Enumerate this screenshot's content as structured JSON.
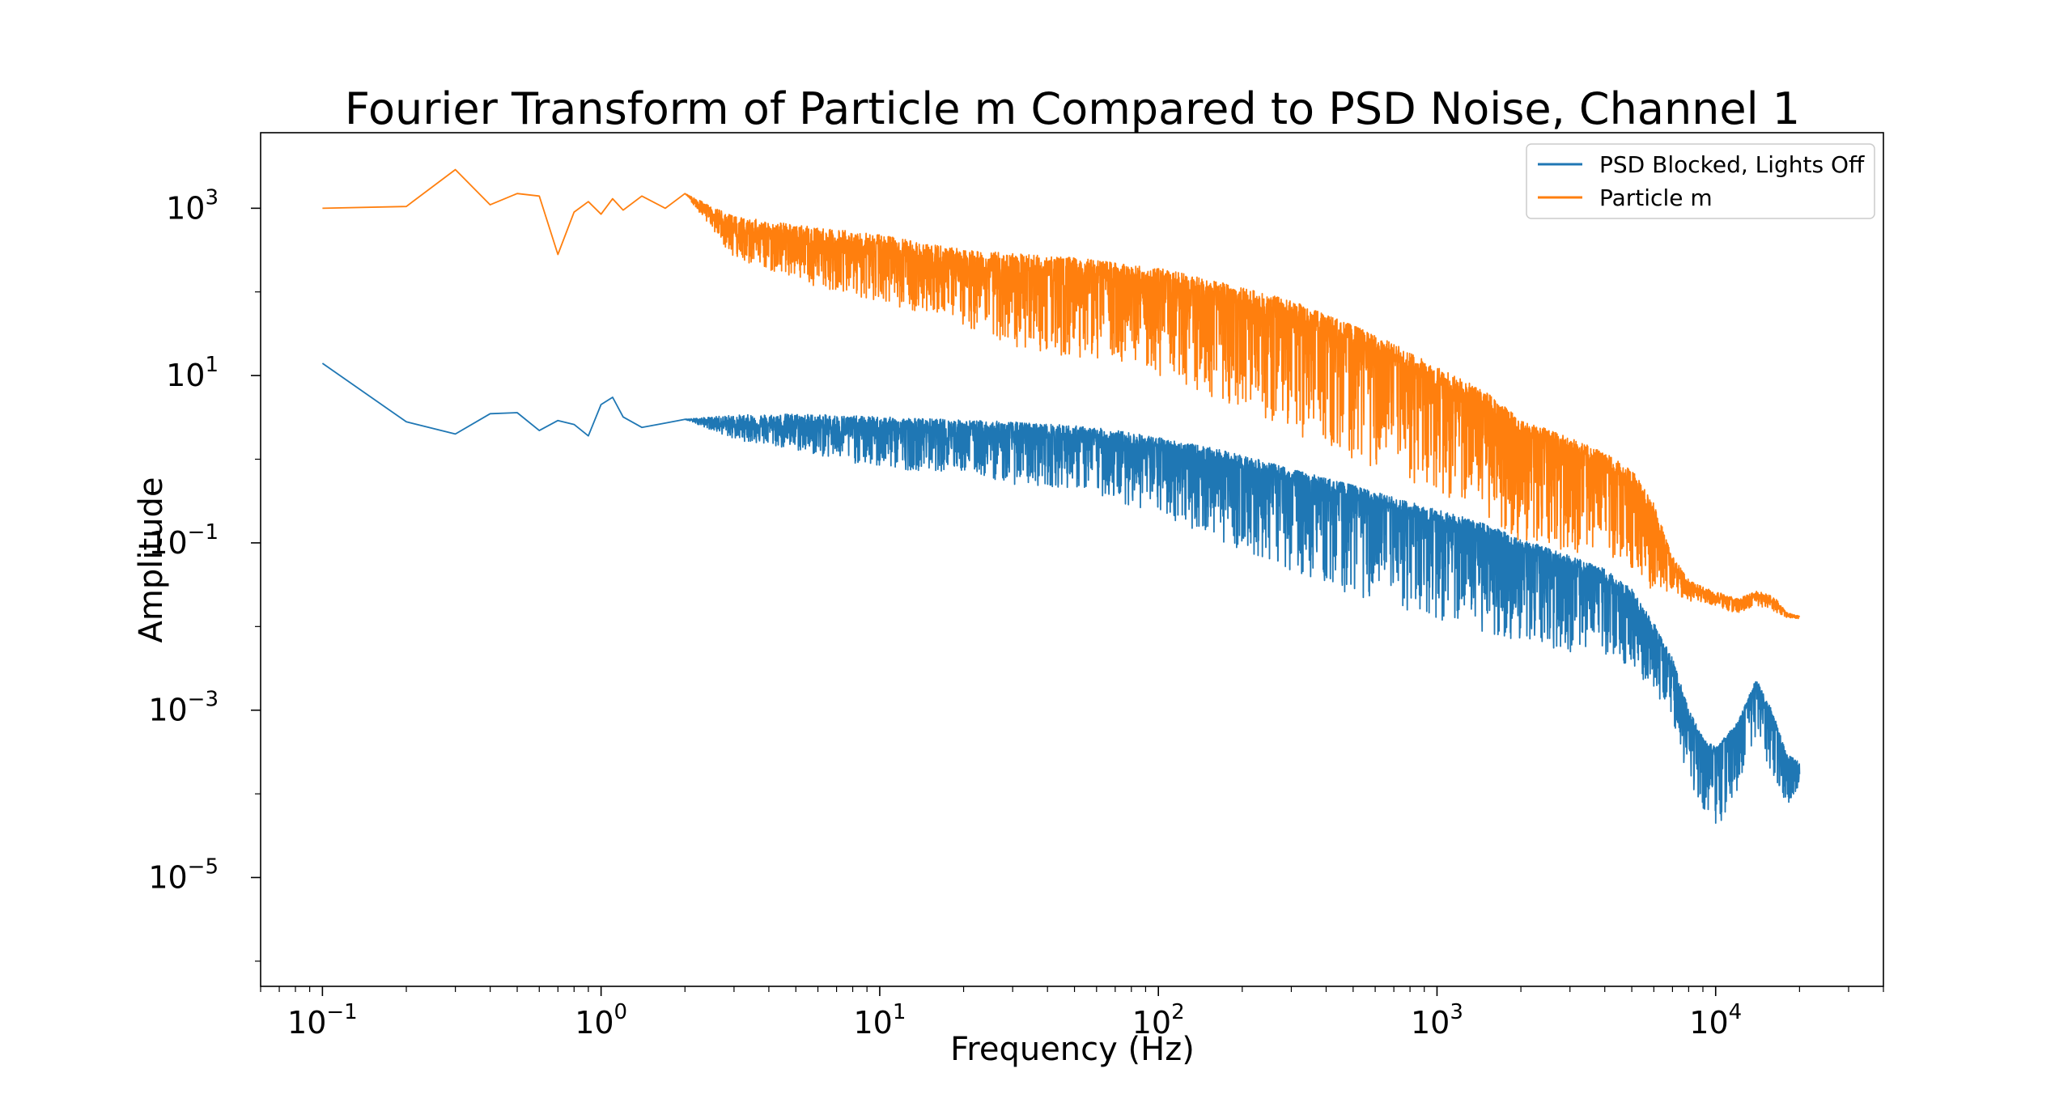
{
  "chart_data": {
    "type": "line",
    "title": "Fourier Transform of Particle m Compared to PSD Noise, Channel 1",
    "xlabel": "Frequency (Hz)",
    "ylabel": "Amplitude",
    "x_scale": "log",
    "y_scale": "log",
    "xlim": [
      0.06,
      40000
    ],
    "ylim": [
      5e-07,
      8000
    ],
    "x_ticks": [
      {
        "value": 0.1,
        "base": "10",
        "exp": "−1"
      },
      {
        "value": 1,
        "base": "10",
        "exp": "0"
      },
      {
        "value": 10,
        "base": "10",
        "exp": "1"
      },
      {
        "value": 100,
        "base": "10",
        "exp": "2"
      },
      {
        "value": 1000,
        "base": "10",
        "exp": "3"
      },
      {
        "value": 10000,
        "base": "10",
        "exp": "4"
      }
    ],
    "y_ticks": [
      {
        "value": 1e-05,
        "base": "10",
        "exp": "−5"
      },
      {
        "value": 0.001,
        "base": "10",
        "exp": "−3"
      },
      {
        "value": 0.1,
        "base": "10",
        "exp": "−1"
      },
      {
        "value": 10,
        "base": "10",
        "exp": "1"
      },
      {
        "value": 1000,
        "base": "10",
        "exp": "3"
      }
    ],
    "grid": false,
    "legend_position": "top-right",
    "series": [
      {
        "name": "PSD Blocked, Lights Off",
        "color": "#1f77b4",
        "x": [
          0.1,
          0.2,
          0.3,
          0.4,
          0.5,
          0.6,
          0.7,
          0.8,
          0.9,
          1.0,
          1.1,
          1.2,
          1.4,
          1.7,
          2,
          3,
          5,
          10,
          20,
          30,
          50,
          70,
          100,
          150,
          200,
          300,
          500,
          700,
          1000,
          1500,
          2000,
          3000,
          4000,
          5000,
          6000,
          7000,
          8000,
          9000,
          10000,
          12000,
          14000,
          16000,
          18000,
          20000
        ],
        "y": [
          14,
          2.8,
          2.0,
          3.5,
          3.6,
          2.2,
          2.9,
          2.6,
          1.9,
          4.5,
          5.5,
          3.2,
          2.4,
          2.7,
          3.0,
          2.6,
          2.5,
          2.3,
          2.1,
          2.0,
          1.8,
          1.6,
          1.3,
          1.0,
          0.8,
          0.55,
          0.35,
          0.25,
          0.18,
          0.12,
          0.08,
          0.05,
          0.035,
          0.02,
          0.008,
          0.003,
          0.0008,
          0.0004,
          0.0003,
          0.0006,
          0.002,
          0.0008,
          0.00025,
          0.0002
        ],
        "noise_low": [
          1,
          1,
          1,
          1,
          1,
          1,
          1,
          1,
          1,
          1,
          1,
          1,
          1,
          1,
          1,
          1.5,
          2,
          3,
          3,
          4,
          4,
          5,
          6,
          8,
          10,
          12,
          15,
          15,
          15,
          15,
          12,
          10,
          8,
          6,
          5,
          4,
          6,
          8,
          10,
          8,
          5,
          5,
          4,
          1.5
        ],
        "noise_high": [
          1,
          1,
          1,
          1,
          1,
          1,
          1,
          1,
          1,
          1,
          1,
          1,
          1,
          1,
          1,
          1.3,
          1.4,
          1.4,
          1.4,
          1.4,
          1.4,
          1.4,
          1.4,
          1.4,
          1.4,
          1.4,
          1.4,
          1.4,
          1.4,
          1.4,
          1.4,
          1.4,
          1.4,
          1.4,
          1.4,
          1.4,
          1.3,
          1.2,
          1.2,
          1.2,
          1.2,
          1.2,
          1.2,
          1.2
        ]
      },
      {
        "name": "Particle m",
        "color": "#ff7f0e",
        "x": [
          0.1,
          0.2,
          0.3,
          0.4,
          0.5,
          0.6,
          0.7,
          0.8,
          0.9,
          1.0,
          1.1,
          1.2,
          1.4,
          1.7,
          2,
          3,
          5,
          10,
          20,
          30,
          50,
          70,
          100,
          150,
          200,
          300,
          500,
          700,
          1000,
          1500,
          2000,
          3000,
          4000,
          5000,
          6000,
          7000,
          8000,
          9000,
          10000,
          12000,
          14000,
          16000,
          18000,
          20000
        ],
        "y": [
          1000,
          1050,
          2900,
          1100,
          1500,
          1400,
          280,
          900,
          1200,
          850,
          1300,
          950,
          1400,
          1000,
          1500,
          500,
          400,
          300,
          200,
          180,
          160,
          140,
          120,
          90,
          70,
          50,
          25,
          15,
          8,
          4,
          2,
          1.2,
          0.8,
          0.5,
          0.2,
          0.05,
          0.03,
          0.025,
          0.022,
          0.018,
          0.022,
          0.02,
          0.014,
          0.013
        ],
        "noise_low": [
          1,
          1,
          1,
          1,
          1,
          1,
          1,
          1,
          1,
          1,
          1,
          1,
          1,
          1,
          1,
          2,
          3,
          4,
          5,
          8,
          10,
          10,
          12,
          15,
          20,
          25,
          25,
          25,
          20,
          20,
          20,
          15,
          12,
          10,
          8,
          2,
          1.5,
          1.3,
          1.3,
          1.3,
          1.3,
          1.3,
          1.1,
          1.05
        ],
        "noise_high": [
          1,
          1,
          1,
          1,
          1,
          1,
          1,
          1,
          1,
          1,
          1,
          1,
          1,
          1,
          1,
          1.6,
          1.6,
          1.6,
          1.6,
          1.6,
          1.6,
          1.6,
          1.6,
          1.6,
          1.6,
          1.6,
          1.6,
          1.6,
          1.6,
          1.6,
          1.5,
          1.5,
          1.5,
          1.5,
          1.5,
          1.4,
          1.2,
          1.2,
          1.2,
          1.2,
          1.2,
          1.2,
          1.05,
          1.02
        ]
      }
    ]
  }
}
